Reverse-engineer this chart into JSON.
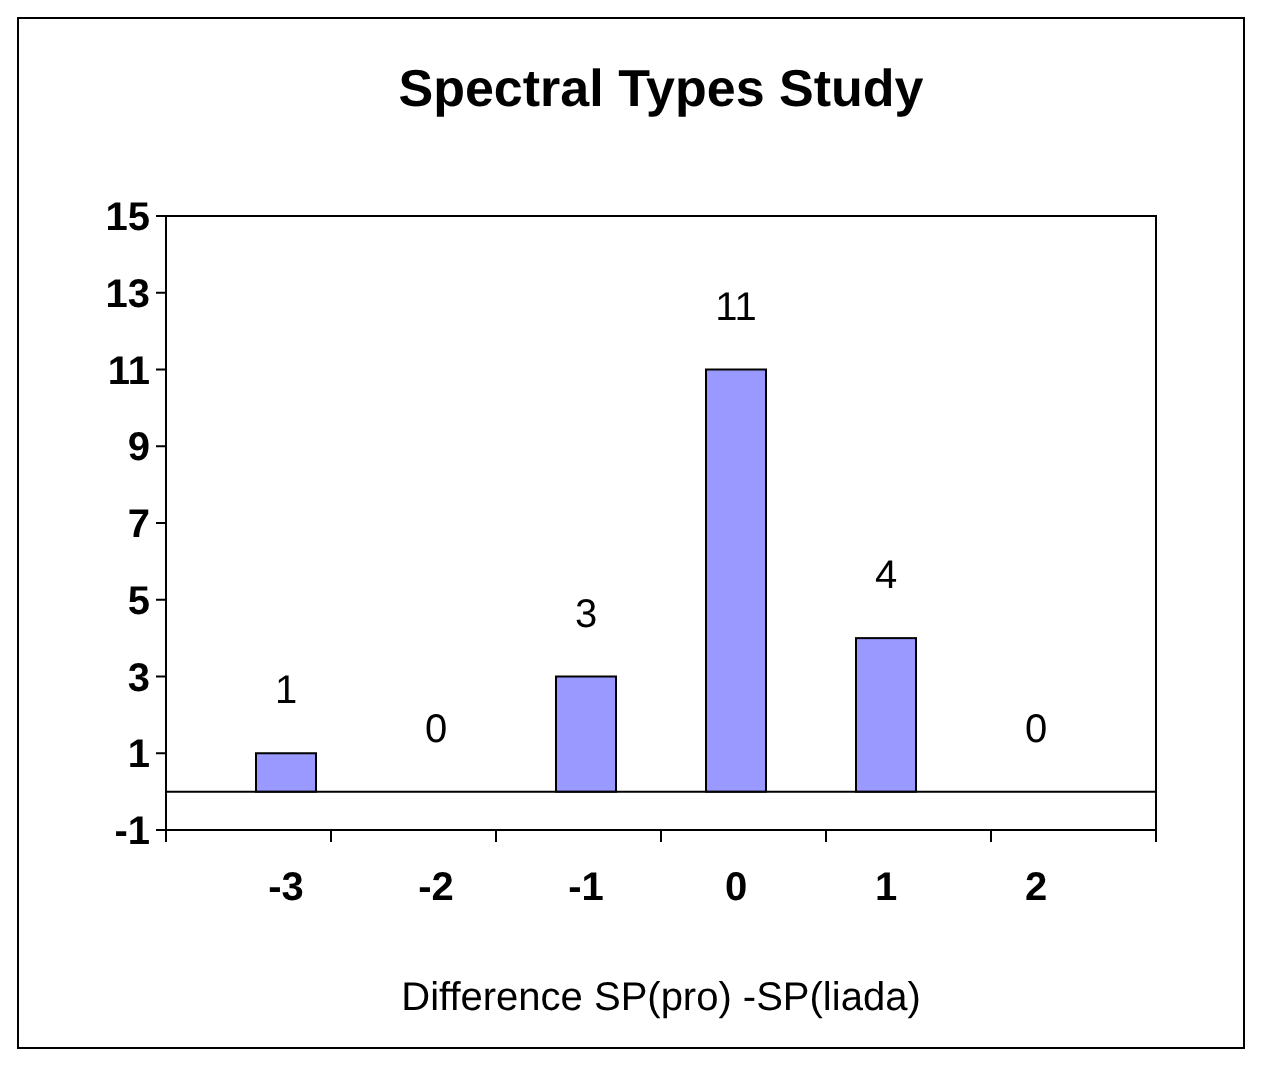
{
  "chart_data": {
    "type": "bar",
    "title": "Spectral Types Study",
    "xlabel": "Difference SP(pro) -SP(liada)",
    "categories": [
      "-3",
      "-2",
      "-1",
      "0",
      "1",
      "2"
    ],
    "values": [
      1,
      0,
      3,
      11,
      4,
      0
    ],
    "color": "#9999ff",
    "ylim": [
      -1,
      15
    ],
    "yticks": [
      -1,
      1,
      3,
      5,
      7,
      9,
      11,
      13,
      15
    ],
    "data_labels": true
  }
}
